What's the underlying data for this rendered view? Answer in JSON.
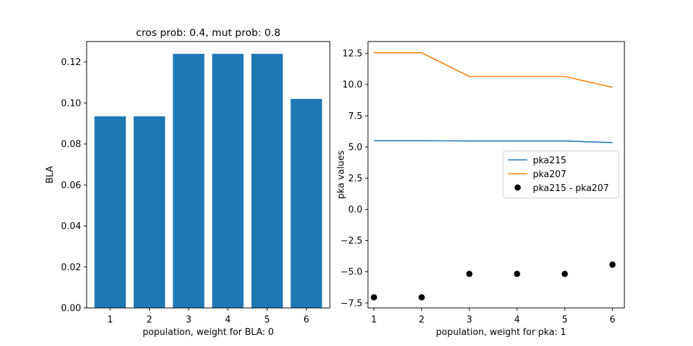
{
  "chart_data": [
    {
      "type": "bar",
      "title": "cros prob: 0.4, mut prob: 0.8",
      "xlabel": "population, weight for BLA: 0",
      "ylabel": "BLA",
      "categories": [
        "1",
        "2",
        "3",
        "4",
        "5",
        "6"
      ],
      "values": [
        0.0935,
        0.0935,
        0.124,
        0.124,
        0.124,
        0.102
      ],
      "ylim": [
        0,
        0.13
      ],
      "yticks": [
        0.0,
        0.02,
        0.04,
        0.06,
        0.08,
        0.1,
        0.12
      ],
      "ytick_labels": [
        "0.00",
        "0.02",
        "0.04",
        "0.06",
        "0.08",
        "0.10",
        "0.12"
      ],
      "xticks": [
        1,
        2,
        3,
        4,
        5,
        6
      ],
      "xtick_labels": [
        "1",
        "2",
        "3",
        "4",
        "5",
        "6"
      ],
      "bar_color": "#1f77b4",
      "grid": false
    },
    {
      "type": "line",
      "title": "",
      "xlabel": "population, weight for pka: 1",
      "ylabel": "pka values",
      "x": [
        1,
        2,
        3,
        4,
        5,
        6
      ],
      "series": [
        {
          "name": "pka215",
          "kind": "line",
          "color": "#1f77b4",
          "values": [
            5.5,
            5.5,
            5.48,
            5.48,
            5.48,
            5.35
          ]
        },
        {
          "name": "pka207",
          "kind": "line",
          "color": "#ff7f0e",
          "values": [
            12.55,
            12.55,
            10.65,
            10.65,
            10.65,
            9.78
          ]
        },
        {
          "name": "pka215 - pka207",
          "kind": "scatter",
          "color": "#000000",
          "values": [
            -7.05,
            -7.05,
            -5.17,
            -5.17,
            -5.17,
            -4.43
          ]
        }
      ],
      "xlim": [
        0.875,
        6.25
      ],
      "ylim": [
        -7.9,
        13.45
      ],
      "yticks": [
        -7.5,
        -5.0,
        -2.5,
        0.0,
        2.5,
        5.0,
        7.5,
        10.0,
        12.5
      ],
      "ytick_labels": [
        "−7.5",
        "−5.0",
        "−2.5",
        "0.0",
        "2.5",
        "5.0",
        "7.5",
        "10.0",
        "12.5"
      ],
      "xticks": [
        1,
        2,
        3,
        4,
        5,
        6
      ],
      "xtick_labels": [
        "1",
        "2",
        "3",
        "4",
        "5",
        "6"
      ],
      "legend": "center-right",
      "grid": false
    }
  ]
}
